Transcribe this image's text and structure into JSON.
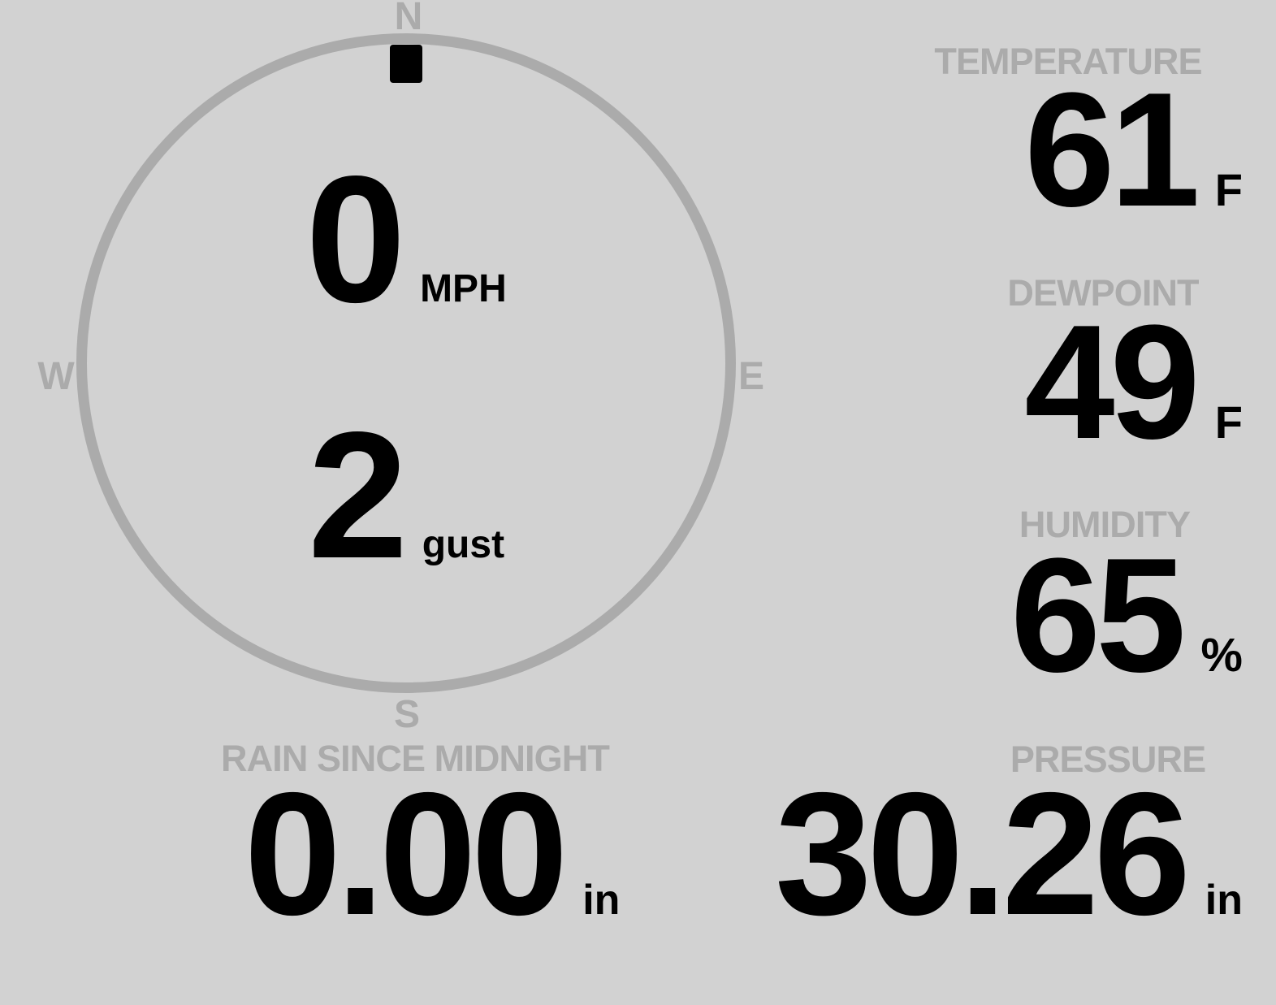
{
  "app": {
    "name": "weather-station-display"
  },
  "colors": {
    "background": "#d2d2d2",
    "muted": "#ababab",
    "value": "#000000",
    "marker": "#000000"
  },
  "compass": {
    "cardinals": {
      "north": "N",
      "east": "E",
      "south": "S",
      "west": "W"
    },
    "marker_direction": "N",
    "wind": {
      "speed": "0",
      "speed_unit": "MPH",
      "gust": "2",
      "gust_unit": "gust"
    }
  },
  "metrics": {
    "temperature": {
      "label": "TEMPERATURE",
      "value": "61",
      "unit": "F"
    },
    "dewpoint": {
      "label": "DEWPOINT",
      "value": "49",
      "unit": "F"
    },
    "humidity": {
      "label": "HUMIDITY",
      "value": "65",
      "unit": "%"
    },
    "rain_since_midnight": {
      "label": "RAIN SINCE MIDNIGHT",
      "value": "0.00",
      "unit": "in"
    },
    "pressure": {
      "label": "PRESSURE",
      "value": "30.26",
      "unit": "in"
    }
  }
}
